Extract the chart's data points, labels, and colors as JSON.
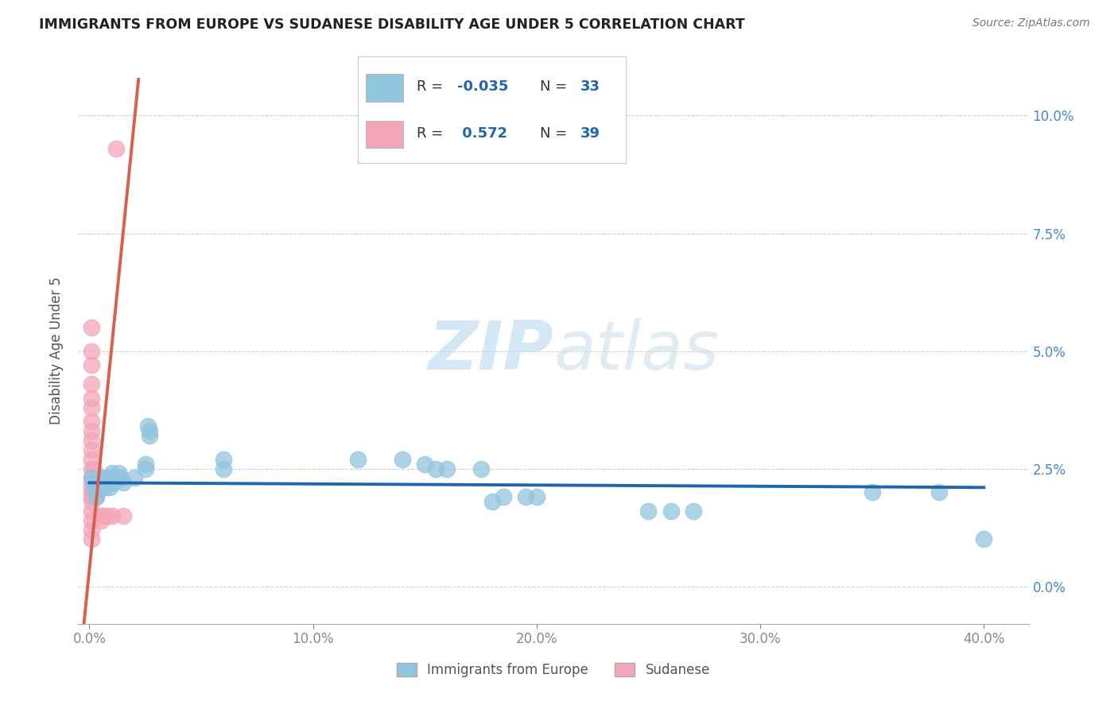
{
  "title": "IMMIGRANTS FROM EUROPE VS SUDANESE DISABILITY AGE UNDER 5 CORRELATION CHART",
  "source": "Source: ZipAtlas.com",
  "xlabel_ticks": [
    "0.0%",
    "10.0%",
    "20.0%",
    "30.0%",
    "40.0%"
  ],
  "ylabel_ticks": [
    "0.0%",
    "2.5%",
    "5.0%",
    "7.5%",
    "10.0%"
  ],
  "xlim": [
    -0.005,
    0.42
  ],
  "ylim": [
    -0.008,
    0.108
  ],
  "ylabel": "Disability Age Under 5",
  "watermark_zip": "ZIP",
  "watermark_atlas": "atlas",
  "blue_color": "#92c5de",
  "pink_color": "#f4a6b8",
  "blue_line_color": "#2166ac",
  "pink_line_color": "#d6604d",
  "blue_line": [
    [
      0.0,
      0.022
    ],
    [
      0.4,
      0.021
    ]
  ],
  "pink_line": [
    [
      -0.005,
      -0.02
    ],
    [
      0.022,
      0.108
    ]
  ],
  "blue_scatter": [
    [
      0.001,
      0.023
    ],
    [
      0.002,
      0.022
    ],
    [
      0.002,
      0.021
    ],
    [
      0.003,
      0.02
    ],
    [
      0.003,
      0.019
    ],
    [
      0.004,
      0.022
    ],
    [
      0.004,
      0.021
    ],
    [
      0.005,
      0.023
    ],
    [
      0.005,
      0.022
    ],
    [
      0.006,
      0.021
    ],
    [
      0.006,
      0.022
    ],
    [
      0.007,
      0.022
    ],
    [
      0.007,
      0.021
    ],
    [
      0.008,
      0.023
    ],
    [
      0.008,
      0.022
    ],
    [
      0.009,
      0.021
    ],
    [
      0.01,
      0.024
    ],
    [
      0.01,
      0.023
    ],
    [
      0.01,
      0.022
    ],
    [
      0.011,
      0.022
    ],
    [
      0.012,
      0.023
    ],
    [
      0.013,
      0.024
    ],
    [
      0.013,
      0.023
    ],
    [
      0.014,
      0.023
    ],
    [
      0.015,
      0.022
    ],
    [
      0.02,
      0.023
    ],
    [
      0.025,
      0.026
    ],
    [
      0.025,
      0.025
    ],
    [
      0.026,
      0.034
    ],
    [
      0.027,
      0.033
    ],
    [
      0.027,
      0.032
    ],
    [
      0.06,
      0.025
    ],
    [
      0.06,
      0.027
    ],
    [
      0.12,
      0.027
    ],
    [
      0.14,
      0.027
    ],
    [
      0.15,
      0.026
    ],
    [
      0.155,
      0.025
    ],
    [
      0.16,
      0.025
    ],
    [
      0.175,
      0.025
    ],
    [
      0.18,
      0.018
    ],
    [
      0.185,
      0.019
    ],
    [
      0.195,
      0.019
    ],
    [
      0.2,
      0.019
    ],
    [
      0.25,
      0.016
    ],
    [
      0.26,
      0.016
    ],
    [
      0.27,
      0.016
    ],
    [
      0.35,
      0.02
    ],
    [
      0.38,
      0.02
    ],
    [
      0.4,
      0.01
    ]
  ],
  "pink_scatter": [
    [
      0.001,
      0.055
    ],
    [
      0.001,
      0.05
    ],
    [
      0.001,
      0.047
    ],
    [
      0.001,
      0.043
    ],
    [
      0.001,
      0.04
    ],
    [
      0.001,
      0.038
    ],
    [
      0.001,
      0.035
    ],
    [
      0.001,
      0.033
    ],
    [
      0.001,
      0.031
    ],
    [
      0.001,
      0.029
    ],
    [
      0.001,
      0.027
    ],
    [
      0.001,
      0.025
    ],
    [
      0.001,
      0.023
    ],
    [
      0.001,
      0.022
    ],
    [
      0.001,
      0.021
    ],
    [
      0.001,
      0.02
    ],
    [
      0.001,
      0.019
    ],
    [
      0.001,
      0.018
    ],
    [
      0.001,
      0.016
    ],
    [
      0.001,
      0.014
    ],
    [
      0.001,
      0.012
    ],
    [
      0.001,
      0.01
    ],
    [
      0.002,
      0.025
    ],
    [
      0.002,
      0.023
    ],
    [
      0.002,
      0.021
    ],
    [
      0.002,
      0.02
    ],
    [
      0.002,
      0.019
    ],
    [
      0.003,
      0.022
    ],
    [
      0.003,
      0.02
    ],
    [
      0.003,
      0.019
    ],
    [
      0.004,
      0.022
    ],
    [
      0.004,
      0.021
    ],
    [
      0.005,
      0.015
    ],
    [
      0.005,
      0.014
    ],
    [
      0.006,
      0.015
    ],
    [
      0.008,
      0.015
    ],
    [
      0.01,
      0.015
    ],
    [
      0.012,
      0.093
    ],
    [
      0.015,
      0.015
    ]
  ]
}
